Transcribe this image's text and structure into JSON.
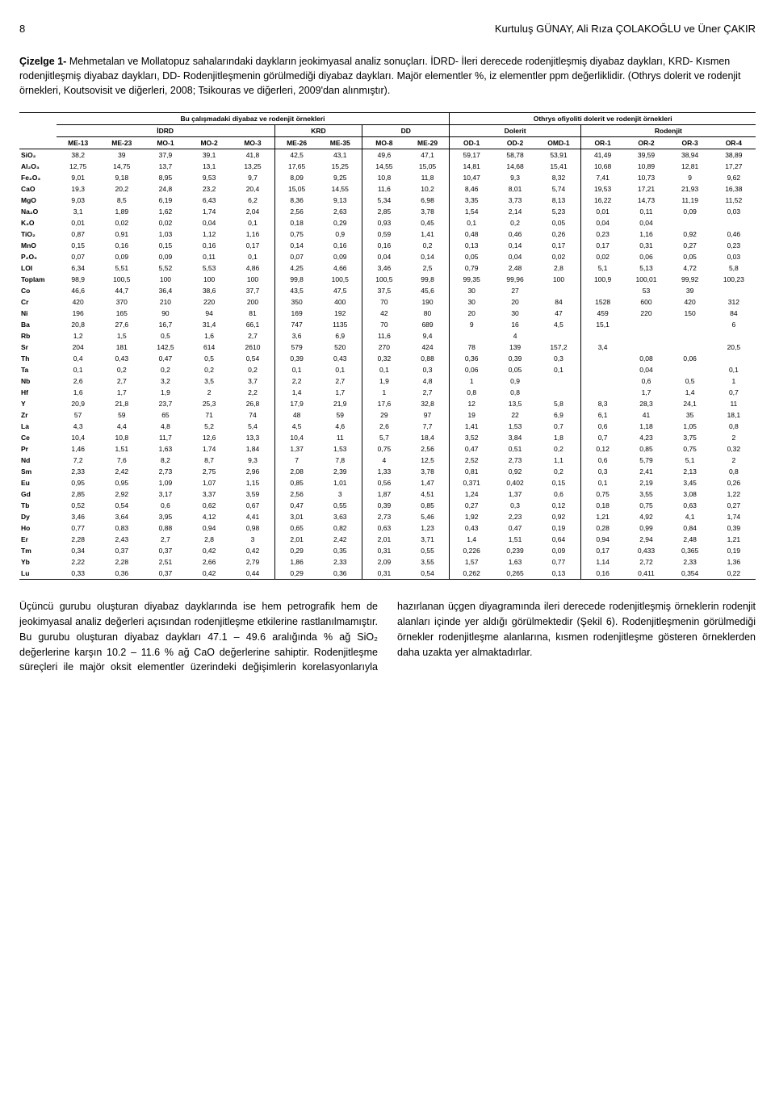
{
  "page_number": "8",
  "authors": "Kurtuluş GÜNAY, Ali Rıza ÇOLAKOĞLU ve Üner ÇAKIR",
  "caption_lead": "Çizelge 1-",
  "caption_body": "Mehmetalan ve Mollatopuz sahalarındaki daykların jeokimyasal analiz sonuçları. İDRD- İleri derecede rodenjitleşmiş diyabaz daykları, KRD- Kısmen rodenjitleşmiş diyabaz daykları, DD- Rodenjitleşmenin görülmediği diyabaz daykları. Majör elementler %, iz elementler ppm değerliklidir. (Othrys dolerit ve rodenjit örnekleri, Koutsovisit ve diğerleri, 2008; Tsikouras ve diğerleri, 2009'dan alınmıştır).",
  "group_left": "Bu çalışmadaki diyabaz ve rodenjit örnekleri",
  "group_right": "Othrys ofiyoliti dolerit ve rodenjit örnekleri",
  "subgroups": [
    "İDRD",
    "KRD",
    "DD",
    "Dolerit",
    "Rodenjit"
  ],
  "columns": [
    "ME-13",
    "ME-23",
    "MO-1",
    "MO-2",
    "MO-3",
    "ME-26",
    "ME-35",
    "MO-8",
    "ME-29",
    "OD-1",
    "OD-2",
    "OMD-1",
    "OR-1",
    "OR-2",
    "OR-3",
    "OR-4"
  ],
  "rows": [
    {
      "label": "SiO₂",
      "v": [
        "38,2",
        "39",
        "37,9",
        "39,1",
        "41,8",
        "42,5",
        "43,1",
        "49,6",
        "47,1",
        "59,17",
        "58,78",
        "53,91",
        "41,49",
        "39,59",
        "38,94",
        "38,89"
      ]
    },
    {
      "label": "Al₂O₃",
      "v": [
        "12,75",
        "14,75",
        "13,7",
        "13,1",
        "13,25",
        "17,65",
        "15,25",
        "14,55",
        "15,05",
        "14,81",
        "14,68",
        "15,41",
        "10,68",
        "10,89",
        "12,81",
        "17,27"
      ]
    },
    {
      "label": "Fe₂O₃",
      "v": [
        "9,01",
        "9,18",
        "8,95",
        "9,53",
        "9,7",
        "8,09",
        "9,25",
        "10,8",
        "11,8",
        "10,47",
        "9,3",
        "8,32",
        "7,41",
        "10,73",
        "9",
        "9,62"
      ]
    },
    {
      "label": "CaO",
      "v": [
        "19,3",
        "20,2",
        "24,8",
        "23,2",
        "20,4",
        "15,05",
        "14,55",
        "11,6",
        "10,2",
        "8,46",
        "8,01",
        "5,74",
        "19,53",
        "17,21",
        "21,93",
        "16,38"
      ]
    },
    {
      "label": "MgO",
      "v": [
        "9,03",
        "8,5",
        "6,19",
        "6,43",
        "6,2",
        "8,36",
        "9,13",
        "5,34",
        "6,98",
        "3,35",
        "3,73",
        "8,13",
        "16,22",
        "14,73",
        "11,19",
        "11,52"
      ]
    },
    {
      "label": "Na₂O",
      "v": [
        "3,1",
        "1,89",
        "1,62",
        "1,74",
        "2,04",
        "2,56",
        "2,63",
        "2,85",
        "3,78",
        "1,54",
        "2,14",
        "5,23",
        "0,01",
        "0,11",
        "0,09",
        "0,03"
      ]
    },
    {
      "label": "K₂O",
      "v": [
        "0,01",
        "0,02",
        "0,02",
        "0,04",
        "0,1",
        "0,18",
        "0,29",
        "0,93",
        "0,45",
        "0,1",
        "0,2",
        "0,05",
        "0,04",
        "0,04",
        "",
        ""
      ]
    },
    {
      "label": "TiO₂",
      "v": [
        "0,87",
        "0,91",
        "1,03",
        "1,12",
        "1,16",
        "0,75",
        "0,9",
        "0,59",
        "1,41",
        "0,48",
        "0,46",
        "0,26",
        "0,23",
        "1,16",
        "0,92",
        "0,46"
      ]
    },
    {
      "label": "MnO",
      "v": [
        "0,15",
        "0,16",
        "0,15",
        "0,16",
        "0,17",
        "0,14",
        "0,16",
        "0,16",
        "0,2",
        "0,13",
        "0,14",
        "0,17",
        "0,17",
        "0,31",
        "0,27",
        "0,23"
      ]
    },
    {
      "label": "P₂O₅",
      "v": [
        "0,07",
        "0,09",
        "0,09",
        "0,11",
        "0,1",
        "0,07",
        "0,09",
        "0,04",
        "0,14",
        "0,05",
        "0,04",
        "0,02",
        "0,02",
        "0,06",
        "0,05",
        "0,03"
      ]
    },
    {
      "label": "LOI",
      "v": [
        "6,34",
        "5,51",
        "5,52",
        "5,53",
        "4,86",
        "4,25",
        "4,66",
        "3,46",
        "2,5",
        "0,79",
        "2,48",
        "2,8",
        "5,1",
        "5,13",
        "4,72",
        "5,8"
      ]
    },
    {
      "label": "Toplam",
      "v": [
        "98,9",
        "100,5",
        "100",
        "100",
        "100",
        "99,8",
        "100,5",
        "100,5",
        "99,8",
        "99,35",
        "99,96",
        "100",
        "100,9",
        "100,01",
        "99,92",
        "100,23"
      ]
    },
    {
      "label": "Co",
      "v": [
        "46,6",
        "44,7",
        "36,4",
        "38,6",
        "37,7",
        "43,5",
        "47,5",
        "37,5",
        "45,6",
        "30",
        "27",
        "",
        "",
        "53",
        "39",
        ""
      ]
    },
    {
      "label": "Cr",
      "v": [
        "420",
        "370",
        "210",
        "220",
        "200",
        "350",
        "400",
        "70",
        "190",
        "30",
        "20",
        "84",
        "1528",
        "600",
        "420",
        "312"
      ]
    },
    {
      "label": "Ni",
      "v": [
        "196",
        "165",
        "90",
        "94",
        "81",
        "169",
        "192",
        "42",
        "80",
        "20",
        "30",
        "47",
        "459",
        "220",
        "150",
        "84"
      ]
    },
    {
      "label": "Ba",
      "v": [
        "20,8",
        "27,6",
        "16,7",
        "31,4",
        "66,1",
        "747",
        "1135",
        "70",
        "689",
        "9",
        "16",
        "4,5",
        "15,1",
        "",
        "",
        "6"
      ]
    },
    {
      "label": "Rb",
      "v": [
        "1,2",
        "1,5",
        "0,5",
        "1,6",
        "2,7",
        "3,6",
        "6,9",
        "11,6",
        "9,4",
        "",
        "4",
        "",
        "",
        "",
        "",
        ""
      ]
    },
    {
      "label": "Sr",
      "v": [
        "204",
        "181",
        "142,5",
        "614",
        "2610",
        "579",
        "520",
        "270",
        "424",
        "78",
        "139",
        "157,2",
        "3,4",
        "",
        "",
        "20,5"
      ]
    },
    {
      "label": "Th",
      "v": [
        "0,4",
        "0,43",
        "0,47",
        "0,5",
        "0,54",
        "0,39",
        "0,43",
        "0,32",
        "0,88",
        "0,36",
        "0,39",
        "0,3",
        "",
        "0,08",
        "0,06",
        ""
      ]
    },
    {
      "label": "Ta",
      "v": [
        "0,1",
        "0,2",
        "0,2",
        "0,2",
        "0,2",
        "0,1",
        "0,1",
        "0,1",
        "0,3",
        "0,06",
        "0,05",
        "0,1",
        "",
        "0,04",
        "",
        "0,1"
      ]
    },
    {
      "label": "Nb",
      "v": [
        "2,6",
        "2,7",
        "3,2",
        "3,5",
        "3,7",
        "2,2",
        "2,7",
        "1,9",
        "4,8",
        "1",
        "0,9",
        "",
        "",
        "0,6",
        "0,5",
        "1"
      ]
    },
    {
      "label": "Hf",
      "v": [
        "1,6",
        "1,7",
        "1,9",
        "2",
        "2,2",
        "1,4",
        "1,7",
        "1",
        "2,7",
        "0,8",
        "0,8",
        "",
        "",
        "1,7",
        "1,4",
        "0,7"
      ]
    },
    {
      "label": "Y",
      "v": [
        "20,9",
        "21,8",
        "23,7",
        "25,3",
        "26,8",
        "17,9",
        "21,9",
        "17,6",
        "32,8",
        "12",
        "13,5",
        "5,8",
        "8,3",
        "28,3",
        "24,1",
        "11"
      ]
    },
    {
      "label": "Zr",
      "v": [
        "57",
        "59",
        "65",
        "71",
        "74",
        "48",
        "59",
        "29",
        "97",
        "19",
        "22",
        "6,9",
        "6,1",
        "41",
        "35",
        "18,1"
      ]
    },
    {
      "label": "La",
      "v": [
        "4,3",
        "4,4",
        "4,8",
        "5,2",
        "5,4",
        "4,5",
        "4,6",
        "2,6",
        "7,7",
        "1,41",
        "1,53",
        "0,7",
        "0,6",
        "1,18",
        "1,05",
        "0,8"
      ]
    },
    {
      "label": "Ce",
      "v": [
        "10,4",
        "10,8",
        "11,7",
        "12,6",
        "13,3",
        "10,4",
        "11",
        "5,7",
        "18,4",
        "3,52",
        "3,84",
        "1,8",
        "0,7",
        "4,23",
        "3,75",
        "2"
      ]
    },
    {
      "label": "Pr",
      "v": [
        "1,46",
        "1,51",
        "1,63",
        "1,74",
        "1,84",
        "1,37",
        "1,53",
        "0,75",
        "2,56",
        "0,47",
        "0,51",
        "0,2",
        "0,12",
        "0,85",
        "0,75",
        "0,32"
      ]
    },
    {
      "label": "Nd",
      "v": [
        "7,2",
        "7,6",
        "8,2",
        "8,7",
        "9,3",
        "7",
        "7,8",
        "4",
        "12,5",
        "2,52",
        "2,73",
        "1,1",
        "0,6",
        "5,79",
        "5,1",
        "2"
      ]
    },
    {
      "label": "Sm",
      "v": [
        "2,33",
        "2,42",
        "2,73",
        "2,75",
        "2,96",
        "2,08",
        "2,39",
        "1,33",
        "3,78",
        "0,81",
        "0,92",
        "0,2",
        "0,3",
        "2,41",
        "2,13",
        "0,8"
      ]
    },
    {
      "label": "Eu",
      "v": [
        "0,95",
        "0,95",
        "1,09",
        "1,07",
        "1,15",
        "0,85",
        "1,01",
        "0,56",
        "1,47",
        "0,371",
        "0,402",
        "0,15",
        "0,1",
        "2,19",
        "3,45",
        "0,26"
      ]
    },
    {
      "label": "Gd",
      "v": [
        "2,85",
        "2,92",
        "3,17",
        "3,37",
        "3,59",
        "2,56",
        "3",
        "1,87",
        "4,51",
        "1,24",
        "1,37",
        "0,6",
        "0,75",
        "3,55",
        "3,08",
        "1,22"
      ]
    },
    {
      "label": "Tb",
      "v": [
        "0,52",
        "0,54",
        "0,6",
        "0,62",
        "0,67",
        "0,47",
        "0,55",
        "0,39",
        "0,85",
        "0,27",
        "0,3",
        "0,12",
        "0,18",
        "0,75",
        "0,63",
        "0,27"
      ]
    },
    {
      "label": "Dy",
      "v": [
        "3,46",
        "3,64",
        "3,95",
        "4,12",
        "4,41",
        "3,01",
        "3,63",
        "2,73",
        "5,46",
        "1,92",
        "2,23",
        "0,92",
        "1,21",
        "4,92",
        "4,1",
        "1,74"
      ]
    },
    {
      "label": "Ho",
      "v": [
        "0,77",
        "0,83",
        "0,88",
        "0,94",
        "0,98",
        "0,65",
        "0,82",
        "0,63",
        "1,23",
        "0,43",
        "0,47",
        "0,19",
        "0,28",
        "0,99",
        "0,84",
        "0,39"
      ]
    },
    {
      "label": "Er",
      "v": [
        "2,28",
        "2,43",
        "2,7",
        "2,8",
        "3",
        "2,01",
        "2,42",
        "2,01",
        "3,71",
        "1,4",
        "1,51",
        "0,64",
        "0,94",
        "2,94",
        "2,48",
        "1,21"
      ]
    },
    {
      "label": "Tm",
      "v": [
        "0,34",
        "0,37",
        "0,37",
        "0,42",
        "0,42",
        "0,29",
        "0,35",
        "0,31",
        "0,55",
        "0,226",
        "0,239",
        "0,09",
        "0,17",
        "0,433",
        "0,365",
        "0,19"
      ]
    },
    {
      "label": "Yb",
      "v": [
        "2,22",
        "2,28",
        "2,51",
        "2,66",
        "2,79",
        "1,86",
        "2,33",
        "2,09",
        "3,55",
        "1,57",
        "1,63",
        "0,77",
        "1,14",
        "2,72",
        "2,33",
        "1,36"
      ]
    },
    {
      "label": "Lu",
      "v": [
        "0,33",
        "0,36",
        "0,37",
        "0,42",
        "0,44",
        "0,29",
        "0,36",
        "0,31",
        "0,54",
        "0,262",
        "0,265",
        "0,13",
        "0,16",
        "0,411",
        "0,354",
        "0,22"
      ]
    }
  ],
  "body_text": "Üçüncü gurubu oluşturan diyabaz dayklarında ise hem petrografik hem de jeokimyasal analiz değerleri açısından rodenjitleşme etkilerine rastlanılmamıştır. Bu gurubu oluşturan diyabaz daykları 47.1 – 49.6 aralığında % ağ SiO₂ değerlerine karşın 10.2 – 11.6 % ağ CaO değerlerine sahiptir. Rodenjitleşme süreçleri ile majör oksit elementler üzerindeki değişimlerin korelasyonlarıyla hazırlanan üçgen diyagramında ileri derecede rodenjitleşmiş örneklerin rodenjit alanları içinde yer aldığı görülmektedir (Şekil 6). Rodenjitleşmenin görülmediği örnekler rodenjitleşme alanlarına, kısmen rodenjitleşme gösteren örneklerden daha uzakta yer almaktadırlar."
}
